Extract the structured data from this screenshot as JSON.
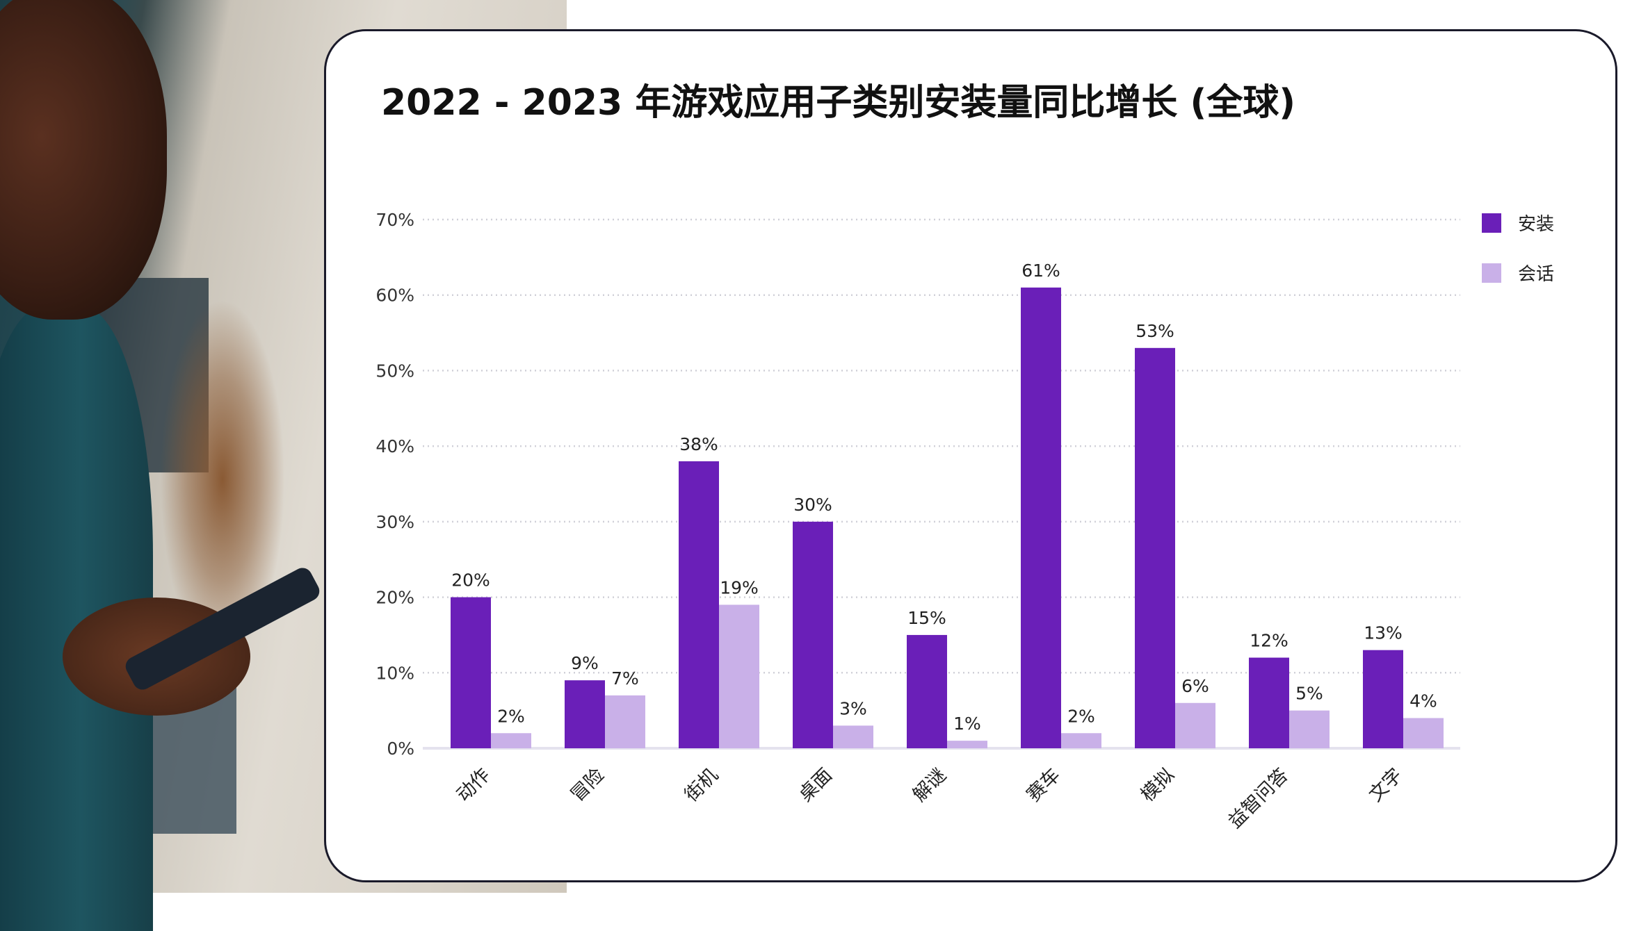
{
  "chart_data": {
    "type": "bar",
    "title": "2022 - 2023 年游戏应用子类别安装量同比增长 (全球)",
    "xlabel": "",
    "ylabel": "",
    "categories": [
      "动作",
      "冒险",
      "街机",
      "桌面",
      "解谜",
      "赛车",
      "模拟",
      "益智问答",
      "文字"
    ],
    "series": [
      {
        "name": "安装",
        "values": [
          20,
          9,
          38,
          30,
          15,
          61,
          53,
          12,
          13
        ],
        "color": "#6a1fb8"
      },
      {
        "name": "会话",
        "values": [
          2,
          7,
          19,
          3,
          1,
          2,
          6,
          5,
          4
        ],
        "color": "#c9b0e8"
      }
    ],
    "ylim": [
      0,
      70
    ],
    "yticks": [
      0,
      10,
      20,
      30,
      40,
      50,
      60,
      70
    ],
    "ytick_format": "%",
    "grid": "horizontal dotted",
    "legend": "top-right"
  }
}
